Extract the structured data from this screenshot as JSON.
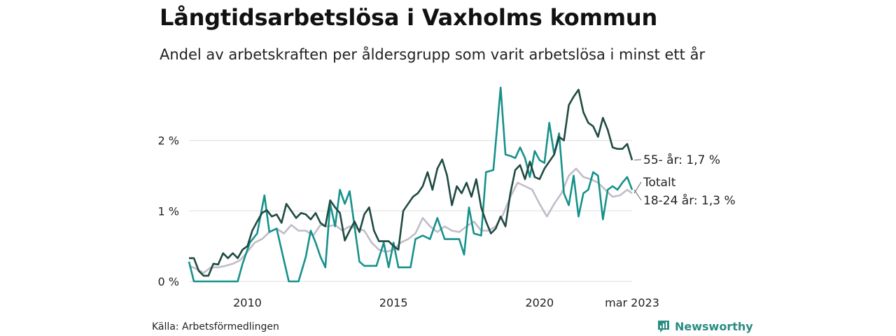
{
  "title": "Långtidsarbetslösa i Vaxholms kommun",
  "subtitle": "Andel av arbetskraften per åldersgrupp som varit arbetslösa i minst ett år",
  "source": "Källa: Arbetsförmedlingen",
  "brand": {
    "name": "Newsworthy",
    "icon": "newsworthy-logo-icon",
    "color": "#2a8c82"
  },
  "chart_data": {
    "type": "line",
    "x_range": [
      "2008-01",
      "2023-03"
    ],
    "y_range": [
      0,
      2.8
    ],
    "y_unit": "%",
    "grid": "horizontal",
    "y_ticks": [
      {
        "value": 0,
        "label": "0 %"
      },
      {
        "value": 1,
        "label": "1 %"
      },
      {
        "value": 2,
        "label": "2 %"
      }
    ],
    "x_ticks": [
      {
        "value": "2010-01",
        "label": "2010"
      },
      {
        "value": "2015-01",
        "label": "2015"
      },
      {
        "value": "2020-01",
        "label": "2020"
      },
      {
        "value": "2023-03",
        "label": "mar 2023"
      }
    ],
    "series": [
      {
        "name": "55- år",
        "end_label": "55- år: 1,7 %",
        "color": "#1f4a42",
        "points": [
          [
            "2008-01",
            0.33
          ],
          [
            "2008-03",
            0.33
          ],
          [
            "2008-05",
            0.15
          ],
          [
            "2008-07",
            0.08
          ],
          [
            "2008-09",
            0.08
          ],
          [
            "2008-11",
            0.25
          ],
          [
            "2009-01",
            0.24
          ],
          [
            "2009-03",
            0.4
          ],
          [
            "2009-05",
            0.33
          ],
          [
            "2009-07",
            0.4
          ],
          [
            "2009-09",
            0.33
          ],
          [
            "2009-11",
            0.45
          ],
          [
            "2010-01",
            0.5
          ],
          [
            "2010-03",
            0.72
          ],
          [
            "2010-05",
            0.85
          ],
          [
            "2010-07",
            0.97
          ],
          [
            "2010-09",
            1.01
          ],
          [
            "2010-11",
            0.92
          ],
          [
            "2011-01",
            0.95
          ],
          [
            "2011-03",
            0.83
          ],
          [
            "2011-05",
            1.1
          ],
          [
            "2011-07",
            1.0
          ],
          [
            "2011-09",
            0.9
          ],
          [
            "2011-11",
            0.97
          ],
          [
            "2012-01",
            0.95
          ],
          [
            "2012-03",
            0.88
          ],
          [
            "2012-05",
            0.97
          ],
          [
            "2012-07",
            0.83
          ],
          [
            "2012-09",
            0.78
          ],
          [
            "2012-11",
            1.15
          ],
          [
            "2013-01",
            1.05
          ],
          [
            "2013-03",
            0.97
          ],
          [
            "2013-05",
            0.58
          ],
          [
            "2013-07",
            0.72
          ],
          [
            "2013-09",
            0.85
          ],
          [
            "2013-11",
            0.7
          ],
          [
            "2014-01",
            0.95
          ],
          [
            "2014-03",
            1.05
          ],
          [
            "2014-05",
            0.72
          ],
          [
            "2014-07",
            0.57
          ],
          [
            "2014-09",
            0.57
          ],
          [
            "2014-11",
            0.57
          ],
          [
            "2015-01",
            0.5
          ],
          [
            "2015-03",
            0.45
          ],
          [
            "2015-05",
            1.0
          ],
          [
            "2015-07",
            1.1
          ],
          [
            "2015-09",
            1.2
          ],
          [
            "2015-11",
            1.25
          ],
          [
            "2016-01",
            1.35
          ],
          [
            "2016-03",
            1.55
          ],
          [
            "2016-05",
            1.3
          ],
          [
            "2016-07",
            1.6
          ],
          [
            "2016-09",
            1.73
          ],
          [
            "2016-11",
            1.5
          ],
          [
            "2017-01",
            1.08
          ],
          [
            "2017-03",
            1.35
          ],
          [
            "2017-05",
            1.25
          ],
          [
            "2017-07",
            1.4
          ],
          [
            "2017-09",
            1.2
          ],
          [
            "2017-11",
            1.45
          ],
          [
            "2018-01",
            1.05
          ],
          [
            "2018-03",
            0.85
          ],
          [
            "2018-05",
            0.68
          ],
          [
            "2018-07",
            0.75
          ],
          [
            "2018-09",
            0.92
          ],
          [
            "2018-11",
            0.78
          ],
          [
            "2019-01",
            1.25
          ],
          [
            "2019-03",
            1.58
          ],
          [
            "2019-05",
            1.65
          ],
          [
            "2019-07",
            1.45
          ],
          [
            "2019-09",
            1.7
          ],
          [
            "2019-11",
            1.48
          ],
          [
            "2020-01",
            1.45
          ],
          [
            "2020-03",
            1.6
          ],
          [
            "2020-05",
            1.7
          ],
          [
            "2020-07",
            1.8
          ],
          [
            "2020-09",
            2.05
          ],
          [
            "2020-11",
            2.0
          ],
          [
            "2021-01",
            2.5
          ],
          [
            "2021-03",
            2.62
          ],
          [
            "2021-05",
            2.72
          ],
          [
            "2021-07",
            2.4
          ],
          [
            "2021-09",
            2.25
          ],
          [
            "2021-11",
            2.2
          ],
          [
            "2022-01",
            2.05
          ],
          [
            "2022-03",
            2.32
          ],
          [
            "2022-05",
            2.15
          ],
          [
            "2022-07",
            1.9
          ],
          [
            "2022-09",
            1.88
          ],
          [
            "2022-11",
            1.88
          ],
          [
            "2023-01",
            1.95
          ],
          [
            "2023-03",
            1.72
          ]
        ]
      },
      {
        "name": "Totalt",
        "end_label": "Totalt",
        "color": "#c0bdc8",
        "points": [
          [
            "2008-01",
            0.22
          ],
          [
            "2008-04",
            0.18
          ],
          [
            "2008-07",
            0.12
          ],
          [
            "2008-10",
            0.2
          ],
          [
            "2009-01",
            0.2
          ],
          [
            "2009-04",
            0.22
          ],
          [
            "2009-07",
            0.25
          ],
          [
            "2009-10",
            0.3
          ],
          [
            "2010-01",
            0.42
          ],
          [
            "2010-04",
            0.55
          ],
          [
            "2010-07",
            0.6
          ],
          [
            "2010-10",
            0.7
          ],
          [
            "2011-01",
            0.75
          ],
          [
            "2011-04",
            0.68
          ],
          [
            "2011-07",
            0.8
          ],
          [
            "2011-10",
            0.72
          ],
          [
            "2012-01",
            0.72
          ],
          [
            "2012-04",
            0.65
          ],
          [
            "2012-07",
            0.8
          ],
          [
            "2012-10",
            0.78
          ],
          [
            "2013-01",
            0.8
          ],
          [
            "2013-04",
            0.72
          ],
          [
            "2013-07",
            0.78
          ],
          [
            "2013-10",
            0.75
          ],
          [
            "2014-01",
            0.72
          ],
          [
            "2014-04",
            0.55
          ],
          [
            "2014-07",
            0.45
          ],
          [
            "2014-10",
            0.42
          ],
          [
            "2015-01",
            0.45
          ],
          [
            "2015-04",
            0.55
          ],
          [
            "2015-07",
            0.6
          ],
          [
            "2015-10",
            0.68
          ],
          [
            "2016-01",
            0.9
          ],
          [
            "2016-04",
            0.78
          ],
          [
            "2016-07",
            0.7
          ],
          [
            "2016-10",
            0.78
          ],
          [
            "2017-01",
            0.72
          ],
          [
            "2017-04",
            0.7
          ],
          [
            "2017-07",
            0.78
          ],
          [
            "2017-10",
            0.85
          ],
          [
            "2018-01",
            0.72
          ],
          [
            "2018-04",
            0.72
          ],
          [
            "2018-07",
            0.78
          ],
          [
            "2018-10",
            0.95
          ],
          [
            "2019-01",
            1.2
          ],
          [
            "2019-04",
            1.4
          ],
          [
            "2019-07",
            1.35
          ],
          [
            "2019-10",
            1.3
          ],
          [
            "2020-01",
            1.1
          ],
          [
            "2020-04",
            0.92
          ],
          [
            "2020-07",
            1.1
          ],
          [
            "2020-10",
            1.25
          ],
          [
            "2021-01",
            1.5
          ],
          [
            "2021-04",
            1.6
          ],
          [
            "2021-07",
            1.48
          ],
          [
            "2021-10",
            1.45
          ],
          [
            "2022-01",
            1.4
          ],
          [
            "2022-04",
            1.3
          ],
          [
            "2022-07",
            1.2
          ],
          [
            "2022-10",
            1.22
          ],
          [
            "2023-01",
            1.3
          ],
          [
            "2023-03",
            1.25
          ]
        ]
      },
      {
        "name": "18-24 år",
        "end_label": "18-24 år: 1,3 %",
        "color": "#16918a",
        "points": [
          [
            "2008-01",
            0.28
          ],
          [
            "2008-03",
            0.0
          ],
          [
            "2008-09",
            0.0
          ],
          [
            "2009-03",
            0.0
          ],
          [
            "2009-09",
            0.0
          ],
          [
            "2009-11",
            0.25
          ],
          [
            "2010-02",
            0.55
          ],
          [
            "2010-05",
            0.68
          ],
          [
            "2010-08",
            1.22
          ],
          [
            "2010-10",
            0.7
          ],
          [
            "2011-01",
            0.75
          ],
          [
            "2011-04",
            0.3
          ],
          [
            "2011-06",
            0.0
          ],
          [
            "2011-10",
            0.0
          ],
          [
            "2012-01",
            0.35
          ],
          [
            "2012-03",
            0.72
          ],
          [
            "2012-05",
            0.55
          ],
          [
            "2012-07",
            0.35
          ],
          [
            "2012-09",
            0.2
          ],
          [
            "2012-11",
            1.1
          ],
          [
            "2013-01",
            0.78
          ],
          [
            "2013-03",
            1.3
          ],
          [
            "2013-05",
            1.1
          ],
          [
            "2013-07",
            1.28
          ],
          [
            "2013-09",
            0.78
          ],
          [
            "2013-11",
            0.28
          ],
          [
            "2014-01",
            0.22
          ],
          [
            "2014-03",
            0.22
          ],
          [
            "2014-06",
            0.22
          ],
          [
            "2014-09",
            0.55
          ],
          [
            "2014-11",
            0.2
          ],
          [
            "2015-01",
            0.55
          ],
          [
            "2015-03",
            0.2
          ],
          [
            "2015-06",
            0.2
          ],
          [
            "2015-08",
            0.2
          ],
          [
            "2015-10",
            0.6
          ],
          [
            "2016-01",
            0.65
          ],
          [
            "2016-04",
            0.6
          ],
          [
            "2016-07",
            0.9
          ],
          [
            "2016-10",
            0.6
          ],
          [
            "2017-01",
            0.6
          ],
          [
            "2017-04",
            0.6
          ],
          [
            "2017-06",
            0.38
          ],
          [
            "2017-08",
            1.05
          ],
          [
            "2017-10",
            0.68
          ],
          [
            "2018-01",
            0.65
          ],
          [
            "2018-03",
            1.55
          ],
          [
            "2018-06",
            1.58
          ],
          [
            "2018-09",
            2.75
          ],
          [
            "2018-11",
            1.8
          ],
          [
            "2019-01",
            1.78
          ],
          [
            "2019-03",
            1.75
          ],
          [
            "2019-05",
            1.9
          ],
          [
            "2019-07",
            1.75
          ],
          [
            "2019-09",
            1.48
          ],
          [
            "2019-11",
            1.85
          ],
          [
            "2020-01",
            1.72
          ],
          [
            "2020-03",
            1.68
          ],
          [
            "2020-05",
            2.25
          ],
          [
            "2020-07",
            1.8
          ],
          [
            "2020-09",
            2.1
          ],
          [
            "2020-11",
            1.25
          ],
          [
            "2021-01",
            1.08
          ],
          [
            "2021-03",
            1.5
          ],
          [
            "2021-05",
            0.92
          ],
          [
            "2021-07",
            1.25
          ],
          [
            "2021-09",
            1.3
          ],
          [
            "2021-11",
            1.55
          ],
          [
            "2022-01",
            1.5
          ],
          [
            "2022-03",
            0.88
          ],
          [
            "2022-05",
            1.3
          ],
          [
            "2022-07",
            1.35
          ],
          [
            "2022-09",
            1.3
          ],
          [
            "2022-11",
            1.4
          ],
          [
            "2023-01",
            1.48
          ],
          [
            "2023-03",
            1.3
          ]
        ]
      }
    ]
  }
}
